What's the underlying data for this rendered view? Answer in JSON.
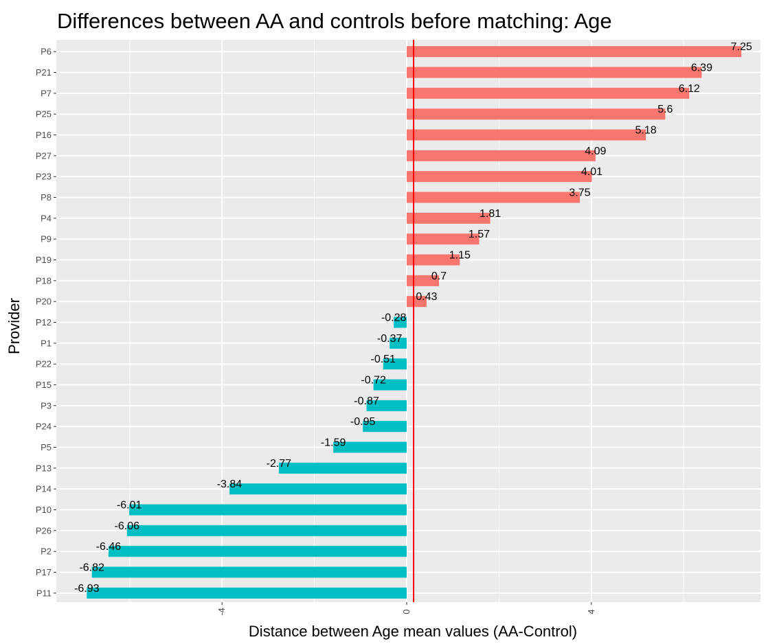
{
  "chart_data": {
    "type": "bar",
    "orientation": "horizontal",
    "title": "Differences between AA and controls before matching: Age",
    "xlabel": "Distance between Age mean values (AA-Control)",
    "ylabel": "Provider",
    "xlim": [
      -7.0,
      7.7
    ],
    "x_ticks": [
      -4,
      0,
      4
    ],
    "x_tick_labels": [
      "-4",
      "0",
      "4"
    ],
    "reference_line": {
      "x": 0.15,
      "color": "#ff0000"
    },
    "grid": true,
    "legend": "none",
    "colors": {
      "positive": "#f8766d",
      "negative": "#00bfc4",
      "panel": "#ebebeb",
      "grid": "#ffffff"
    },
    "categories": [
      "P6",
      "P21",
      "P7",
      "P25",
      "P16",
      "P27",
      "P23",
      "P8",
      "P4",
      "P9",
      "P19",
      "P18",
      "P20",
      "P12",
      "P1",
      "P22",
      "P15",
      "P3",
      "P24",
      "P5",
      "P13",
      "P14",
      "P10",
      "P26",
      "P2",
      "P17",
      "P11"
    ],
    "values": [
      7.25,
      6.39,
      6.12,
      5.6,
      5.18,
      4.09,
      4.01,
      3.75,
      1.81,
      1.57,
      1.15,
      0.7,
      0.43,
      -0.28,
      -0.37,
      -0.51,
      -0.72,
      -0.87,
      -0.95,
      -1.59,
      -2.77,
      -3.84,
      -6.01,
      -6.06,
      -6.46,
      -6.82,
      -6.93
    ],
    "value_labels": [
      "7.25",
      "6.39",
      "6.12",
      "5.6",
      "5.18",
      "4.09",
      "4.01",
      "3.75",
      "1.81",
      "1.57",
      "1.15",
      "0.7",
      "0.43",
      "-0.28",
      "-0.37",
      "-0.51",
      "-0.72",
      "-0.87",
      "-0.95",
      "-1.59",
      "-2.77",
      "-3.84",
      "-6.01",
      "-6.06",
      "-6.46",
      "-6.82",
      "-6.93"
    ]
  }
}
